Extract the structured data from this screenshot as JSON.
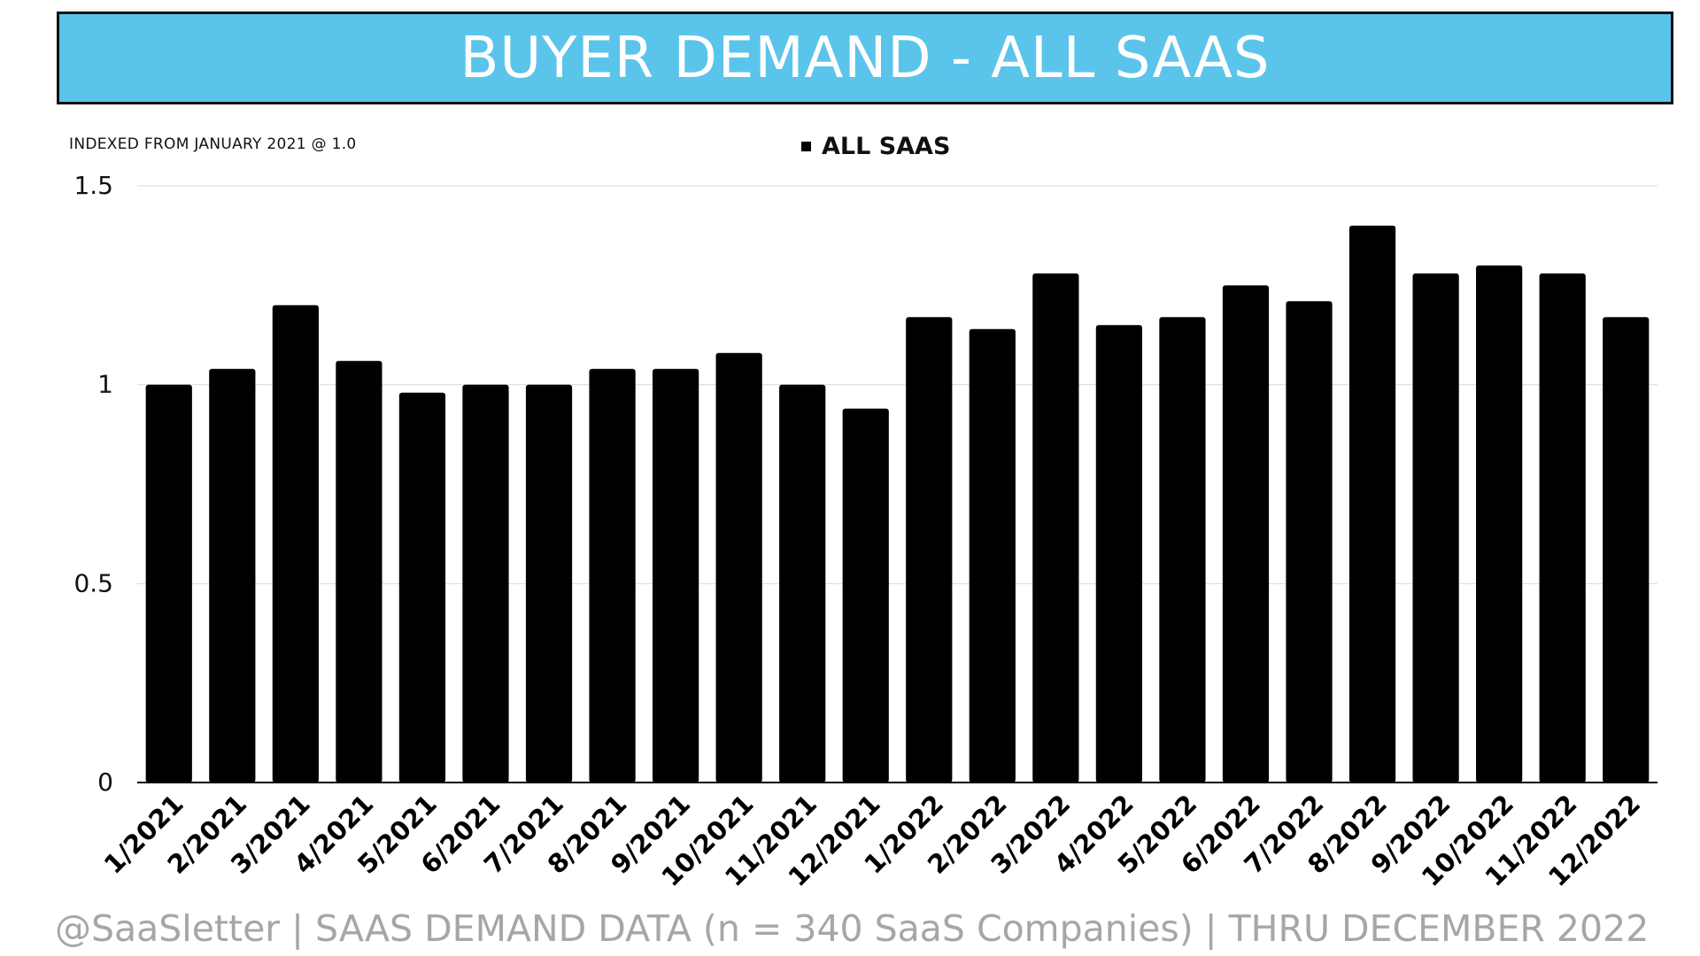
{
  "title": "BUYER DEMAND - ALL SAAS",
  "subtitle": "INDEXED FROM JANUARY 2021 @ 1.0",
  "legend_label": "ALL SAAS",
  "footer": "@SaaSletter | SAAS DEMAND DATA (n = 340 SaaS Companies) | THRU DECEMBER 2022",
  "colors": {
    "banner": "#5bc4ea",
    "bars": "#000000",
    "footer_text": "#a6a6a6"
  },
  "chart_data": {
    "type": "bar",
    "title": "BUYER DEMAND - ALL SAAS",
    "xlabel": "",
    "ylabel": "",
    "ylim": [
      0,
      1.5
    ],
    "yticks": [
      0,
      0.5,
      1,
      1.5
    ],
    "ytick_labels": [
      "0",
      "0.5",
      "1",
      "1.5"
    ],
    "grid": true,
    "legend_position": "top-center",
    "categories": [
      "1/2021",
      "2/2021",
      "3/2021",
      "4/2021",
      "5/2021",
      "6/2021",
      "7/2021",
      "8/2021",
      "9/2021",
      "10/2021",
      "11/2021",
      "12/2021",
      "1/2022",
      "2/2022",
      "3/2022",
      "4/2022",
      "5/2022",
      "6/2022",
      "7/2022",
      "8/2022",
      "9/2022",
      "10/2022",
      "11/2022",
      "12/2022"
    ],
    "series": [
      {
        "name": "ALL SAAS",
        "values": [
          1.0,
          1.04,
          1.2,
          1.06,
          0.98,
          1.0,
          1.0,
          1.04,
          1.04,
          1.08,
          1.0,
          0.94,
          1.17,
          1.14,
          1.28,
          1.15,
          1.17,
          1.25,
          1.21,
          1.4,
          1.28,
          1.3,
          1.28,
          1.17
        ]
      }
    ]
  }
}
